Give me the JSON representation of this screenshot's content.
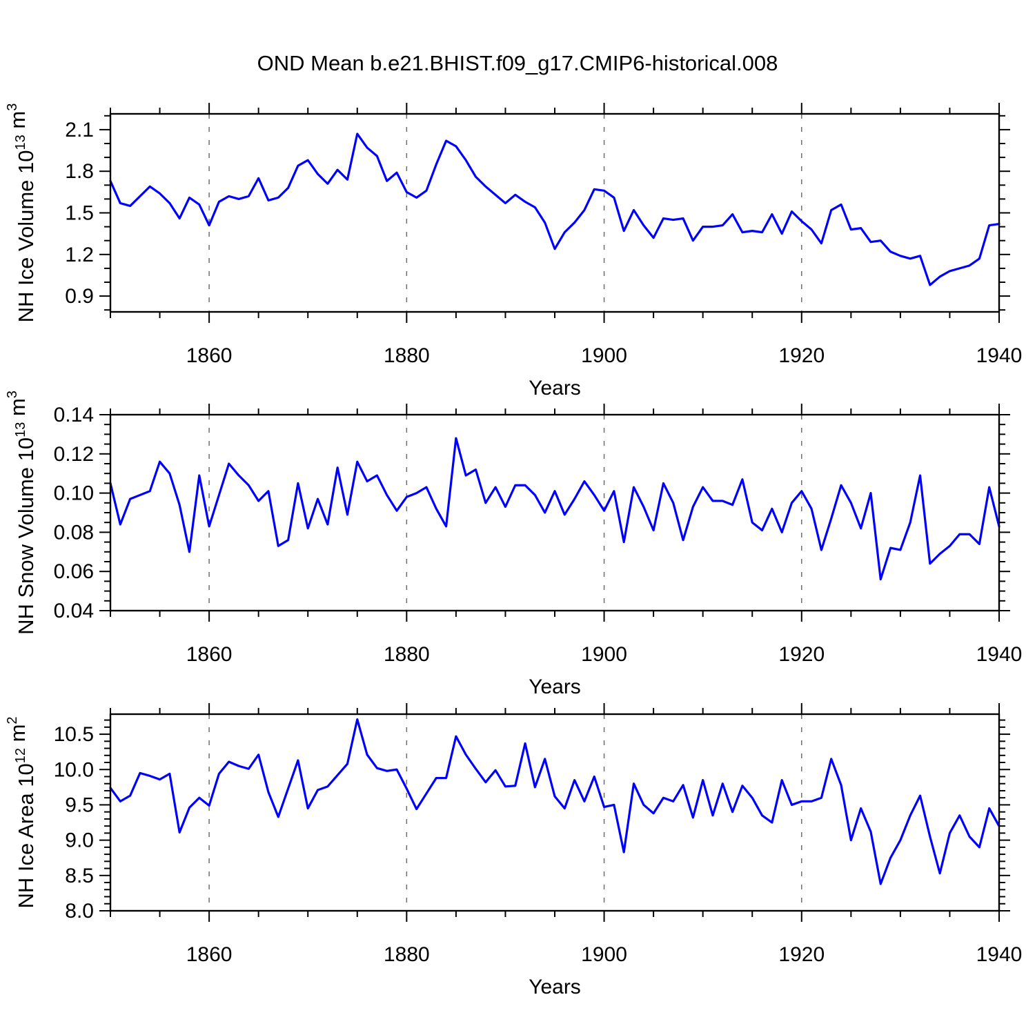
{
  "title": "OND Mean b.e21.BHIST.f09_g17.CMIP6-historical.008",
  "line_color": "#0000ff",
  "grid_color": "#6e6e6e",
  "axis_color": "#000000",
  "chart_data": [
    {
      "type": "line",
      "name": "nh-ice-volume",
      "ylabel_text": "NH Ice Volume 10^13 m^3",
      "ylabel_segments": [
        [
          "text",
          "NH Ice Volume 10"
        ],
        [
          "sup",
          "13"
        ],
        [
          "text",
          " m"
        ],
        [
          "sup",
          "3"
        ]
      ],
      "xlabel": "Years",
      "xlim": [
        1850,
        1940
      ],
      "ylim": [
        0.786,
        2.214
      ],
      "x_start": 1850,
      "x_step": 1,
      "yticks_major": [
        0.9,
        1.2,
        1.5,
        1.8,
        2.1
      ],
      "ytick_labels": [
        "0.9",
        "1.2",
        "1.5",
        "1.8",
        "2.1"
      ],
      "ytick_minor_start": 0.8,
      "ytick_minor_step": 0.1,
      "xticks_labeled": [
        1860,
        1880,
        1900,
        1920,
        1940
      ],
      "xtick_labels": [
        "1860",
        "1880",
        "1900",
        "1920",
        "1940"
      ],
      "xtick_minor_step": 5,
      "gridlines_x": [
        1860,
        1880,
        1900,
        1920
      ],
      "grid_dashed": true,
      "values": [
        1.73,
        1.57,
        1.55,
        1.62,
        1.69,
        1.64,
        1.57,
        1.46,
        1.61,
        1.56,
        1.41,
        1.58,
        1.62,
        1.6,
        1.62,
        1.75,
        1.59,
        1.61,
        1.68,
        1.84,
        1.88,
        1.78,
        1.71,
        1.81,
        1.74,
        2.07,
        1.97,
        1.91,
        1.73,
        1.79,
        1.65,
        1.61,
        1.66,
        1.85,
        2.02,
        1.98,
        1.88,
        1.76,
        1.69,
        1.63,
        1.57,
        1.63,
        1.58,
        1.54,
        1.43,
        1.24,
        1.36,
        1.43,
        1.52,
        1.67,
        1.66,
        1.61,
        1.37,
        1.52,
        1.41,
        1.32,
        1.46,
        1.45,
        1.46,
        1.3,
        1.4,
        1.4,
        1.41,
        1.49,
        1.36,
        1.37,
        1.36,
        1.49,
        1.35,
        1.51,
        1.44,
        1.38,
        1.28,
        1.52,
        1.56,
        1.38,
        1.39,
        1.29,
        1.3,
        1.22,
        1.19,
        1.17,
        1.19,
        0.98,
        1.04,
        1.08,
        1.1,
        1.12,
        1.17,
        1.41,
        1.42
      ]
    },
    {
      "type": "line",
      "name": "nh-snow-volume",
      "ylabel_text": "NH Snow Volume 10^13 m^3",
      "ylabel_segments": [
        [
          "text",
          "NH Snow Volume 10"
        ],
        [
          "sup",
          "13"
        ],
        [
          "text",
          " m"
        ],
        [
          "sup",
          "3"
        ]
      ],
      "xlabel": "Years",
      "xlim": [
        1850,
        1940
      ],
      "ylim": [
        0.04,
        0.14
      ],
      "x_start": 1850,
      "x_step": 1,
      "yticks_major": [
        0.04,
        0.06,
        0.08,
        0.1,
        0.12,
        0.14
      ],
      "ytick_labels": [
        "0.04",
        "0.06",
        "0.08",
        "0.10",
        "0.12",
        "0.14"
      ],
      "ytick_minor_start": 0.04,
      "ytick_minor_step": 0.005,
      "xticks_labeled": [
        1860,
        1880,
        1900,
        1920,
        1940
      ],
      "xtick_labels": [
        "1860",
        "1880",
        "1900",
        "1920",
        "1940"
      ],
      "xtick_minor_step": 5,
      "gridlines_x": [
        1860,
        1880,
        1900,
        1920
      ],
      "grid_dashed": true,
      "values": [
        0.105,
        0.084,
        0.097,
        0.099,
        0.101,
        0.116,
        0.11,
        0.094,
        0.07,
        0.109,
        0.083,
        0.099,
        0.115,
        0.109,
        0.104,
        0.096,
        0.101,
        0.073,
        0.076,
        0.105,
        0.082,
        0.097,
        0.084,
        0.113,
        0.089,
        0.116,
        0.106,
        0.109,
        0.099,
        0.091,
        0.098,
        0.1,
        0.103,
        0.092,
        0.083,
        0.128,
        0.109,
        0.112,
        0.095,
        0.103,
        0.093,
        0.104,
        0.104,
        0.099,
        0.09,
        0.101,
        0.089,
        0.097,
        0.106,
        0.099,
        0.091,
        0.101,
        0.075,
        0.103,
        0.093,
        0.081,
        0.105,
        0.095,
        0.076,
        0.093,
        0.103,
        0.096,
        0.096,
        0.094,
        0.107,
        0.085,
        0.081,
        0.092,
        0.08,
        0.095,
        0.101,
        0.092,
        0.071,
        0.087,
        0.104,
        0.095,
        0.082,
        0.1,
        0.056,
        0.072,
        0.071,
        0.085,
        0.109,
        0.064,
        0.069,
        0.073,
        0.079,
        0.079,
        0.074,
        0.103,
        0.083
      ]
    },
    {
      "type": "line",
      "name": "nh-ice-area",
      "ylabel_text": "NH Ice Area 10^12 m^2",
      "ylabel_segments": [
        [
          "text",
          "NH Ice Area 10"
        ],
        [
          "sup",
          "12"
        ],
        [
          "text",
          " m"
        ],
        [
          "sup",
          "2"
        ]
      ],
      "xlabel": "Years",
      "xlim": [
        1850,
        1940
      ],
      "ylim": [
        8.0,
        10.784
      ],
      "x_start": 1850,
      "x_step": 1,
      "yticks_major": [
        8.0,
        8.5,
        9.0,
        9.5,
        10.0,
        10.5
      ],
      "ytick_labels": [
        "8.0",
        "8.5",
        "9.0",
        "9.5",
        "10.0",
        "10.5"
      ],
      "ytick_minor_start": 8.0,
      "ytick_minor_step": 0.1,
      "xticks_labeled": [
        1860,
        1880,
        1900,
        1920,
        1940
      ],
      "xtick_labels": [
        "1860",
        "1880",
        "1900",
        "1920",
        "1940"
      ],
      "xtick_minor_step": 5,
      "gridlines_x": [
        1860,
        1880,
        1900,
        1920
      ],
      "grid_dashed": true,
      "values": [
        9.74,
        9.55,
        9.63,
        9.95,
        9.91,
        9.86,
        9.94,
        9.11,
        9.46,
        9.6,
        9.49,
        9.94,
        10.11,
        10.05,
        10.01,
        10.21,
        9.68,
        9.33,
        9.73,
        10.13,
        9.45,
        9.71,
        9.76,
        9.92,
        10.08,
        10.71,
        10.21,
        10.02,
        9.98,
        10.0,
        9.73,
        9.44,
        9.66,
        9.88,
        9.88,
        10.47,
        10.21,
        10.01,
        9.82,
        9.99,
        9.76,
        9.77,
        10.37,
        9.75,
        10.15,
        9.62,
        9.45,
        9.85,
        9.55,
        9.9,
        9.47,
        9.5,
        8.83,
        9.8,
        9.5,
        9.38,
        9.6,
        9.55,
        9.78,
        9.32,
        9.85,
        9.35,
        9.8,
        9.4,
        9.77,
        9.6,
        9.35,
        9.25,
        9.85,
        9.5,
        9.55,
        9.55,
        9.6,
        10.15,
        9.78,
        9.0,
        9.45,
        9.12,
        8.38,
        8.75,
        9.0,
        9.35,
        9.63,
        9.05,
        8.53,
        9.1,
        9.35,
        9.05,
        8.9,
        9.45,
        9.2
      ]
    }
  ]
}
